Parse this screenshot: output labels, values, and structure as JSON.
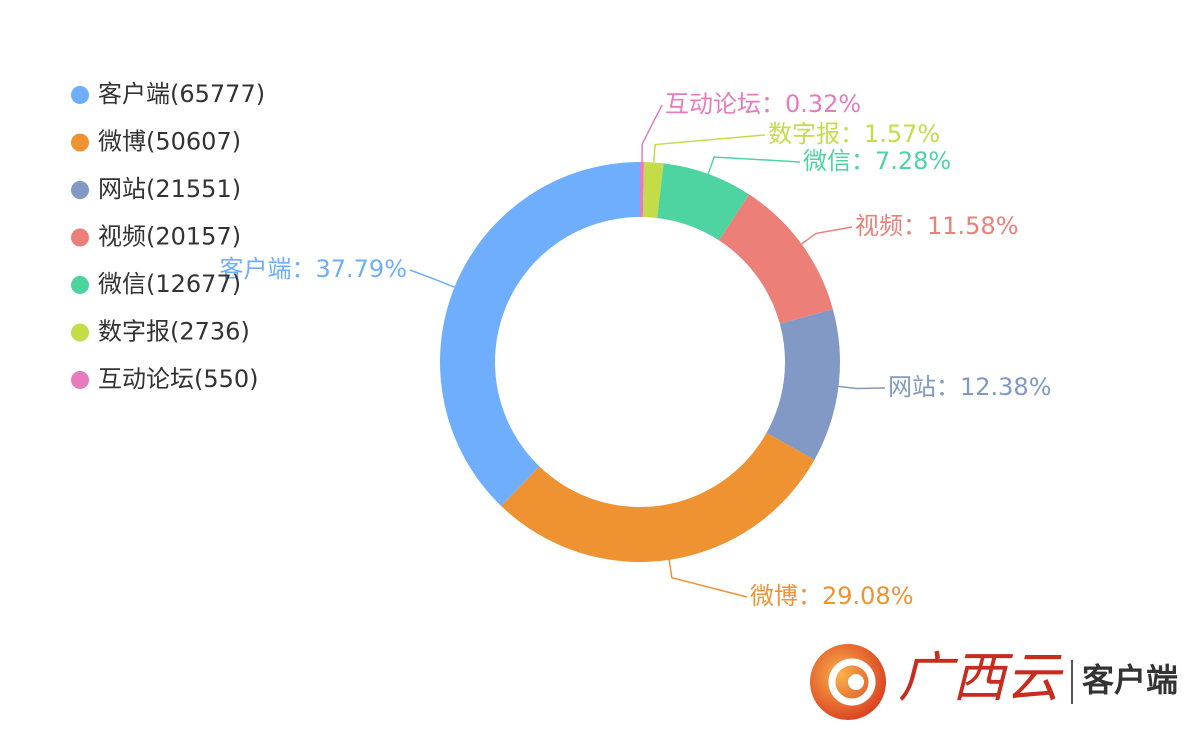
{
  "chart_data": {
    "type": "donut",
    "categories": [
      "客户端",
      "微博",
      "网站",
      "视频",
      "微信",
      "数字报",
      "互动论坛"
    ],
    "values": [
      65777,
      50607,
      21551,
      20157,
      12677,
      2736,
      550
    ],
    "legend_labels": [
      "客户端(65777)",
      "微博(50607)",
      "网站(21551)",
      "视频(20157)",
      "微信(12677)",
      "数字报(2736)",
      "互动论坛(550)"
    ],
    "data_labels": [
      "客户端：37.79%",
      "微博：29.08%",
      "网站：12.38%",
      "视频：11.58%",
      "微信：7.28%",
      "数字报：1.57%",
      "互动论坛：0.32%"
    ],
    "colors": [
      "#6eaefc",
      "#ee9232",
      "#8199c4",
      "#ec7f78",
      "#4dd4a0",
      "#c3dc48",
      "#e77cbd"
    ],
    "legend_position": "top-left"
  },
  "logo": {
    "brand": "广西云",
    "suffix": "客户端"
  }
}
